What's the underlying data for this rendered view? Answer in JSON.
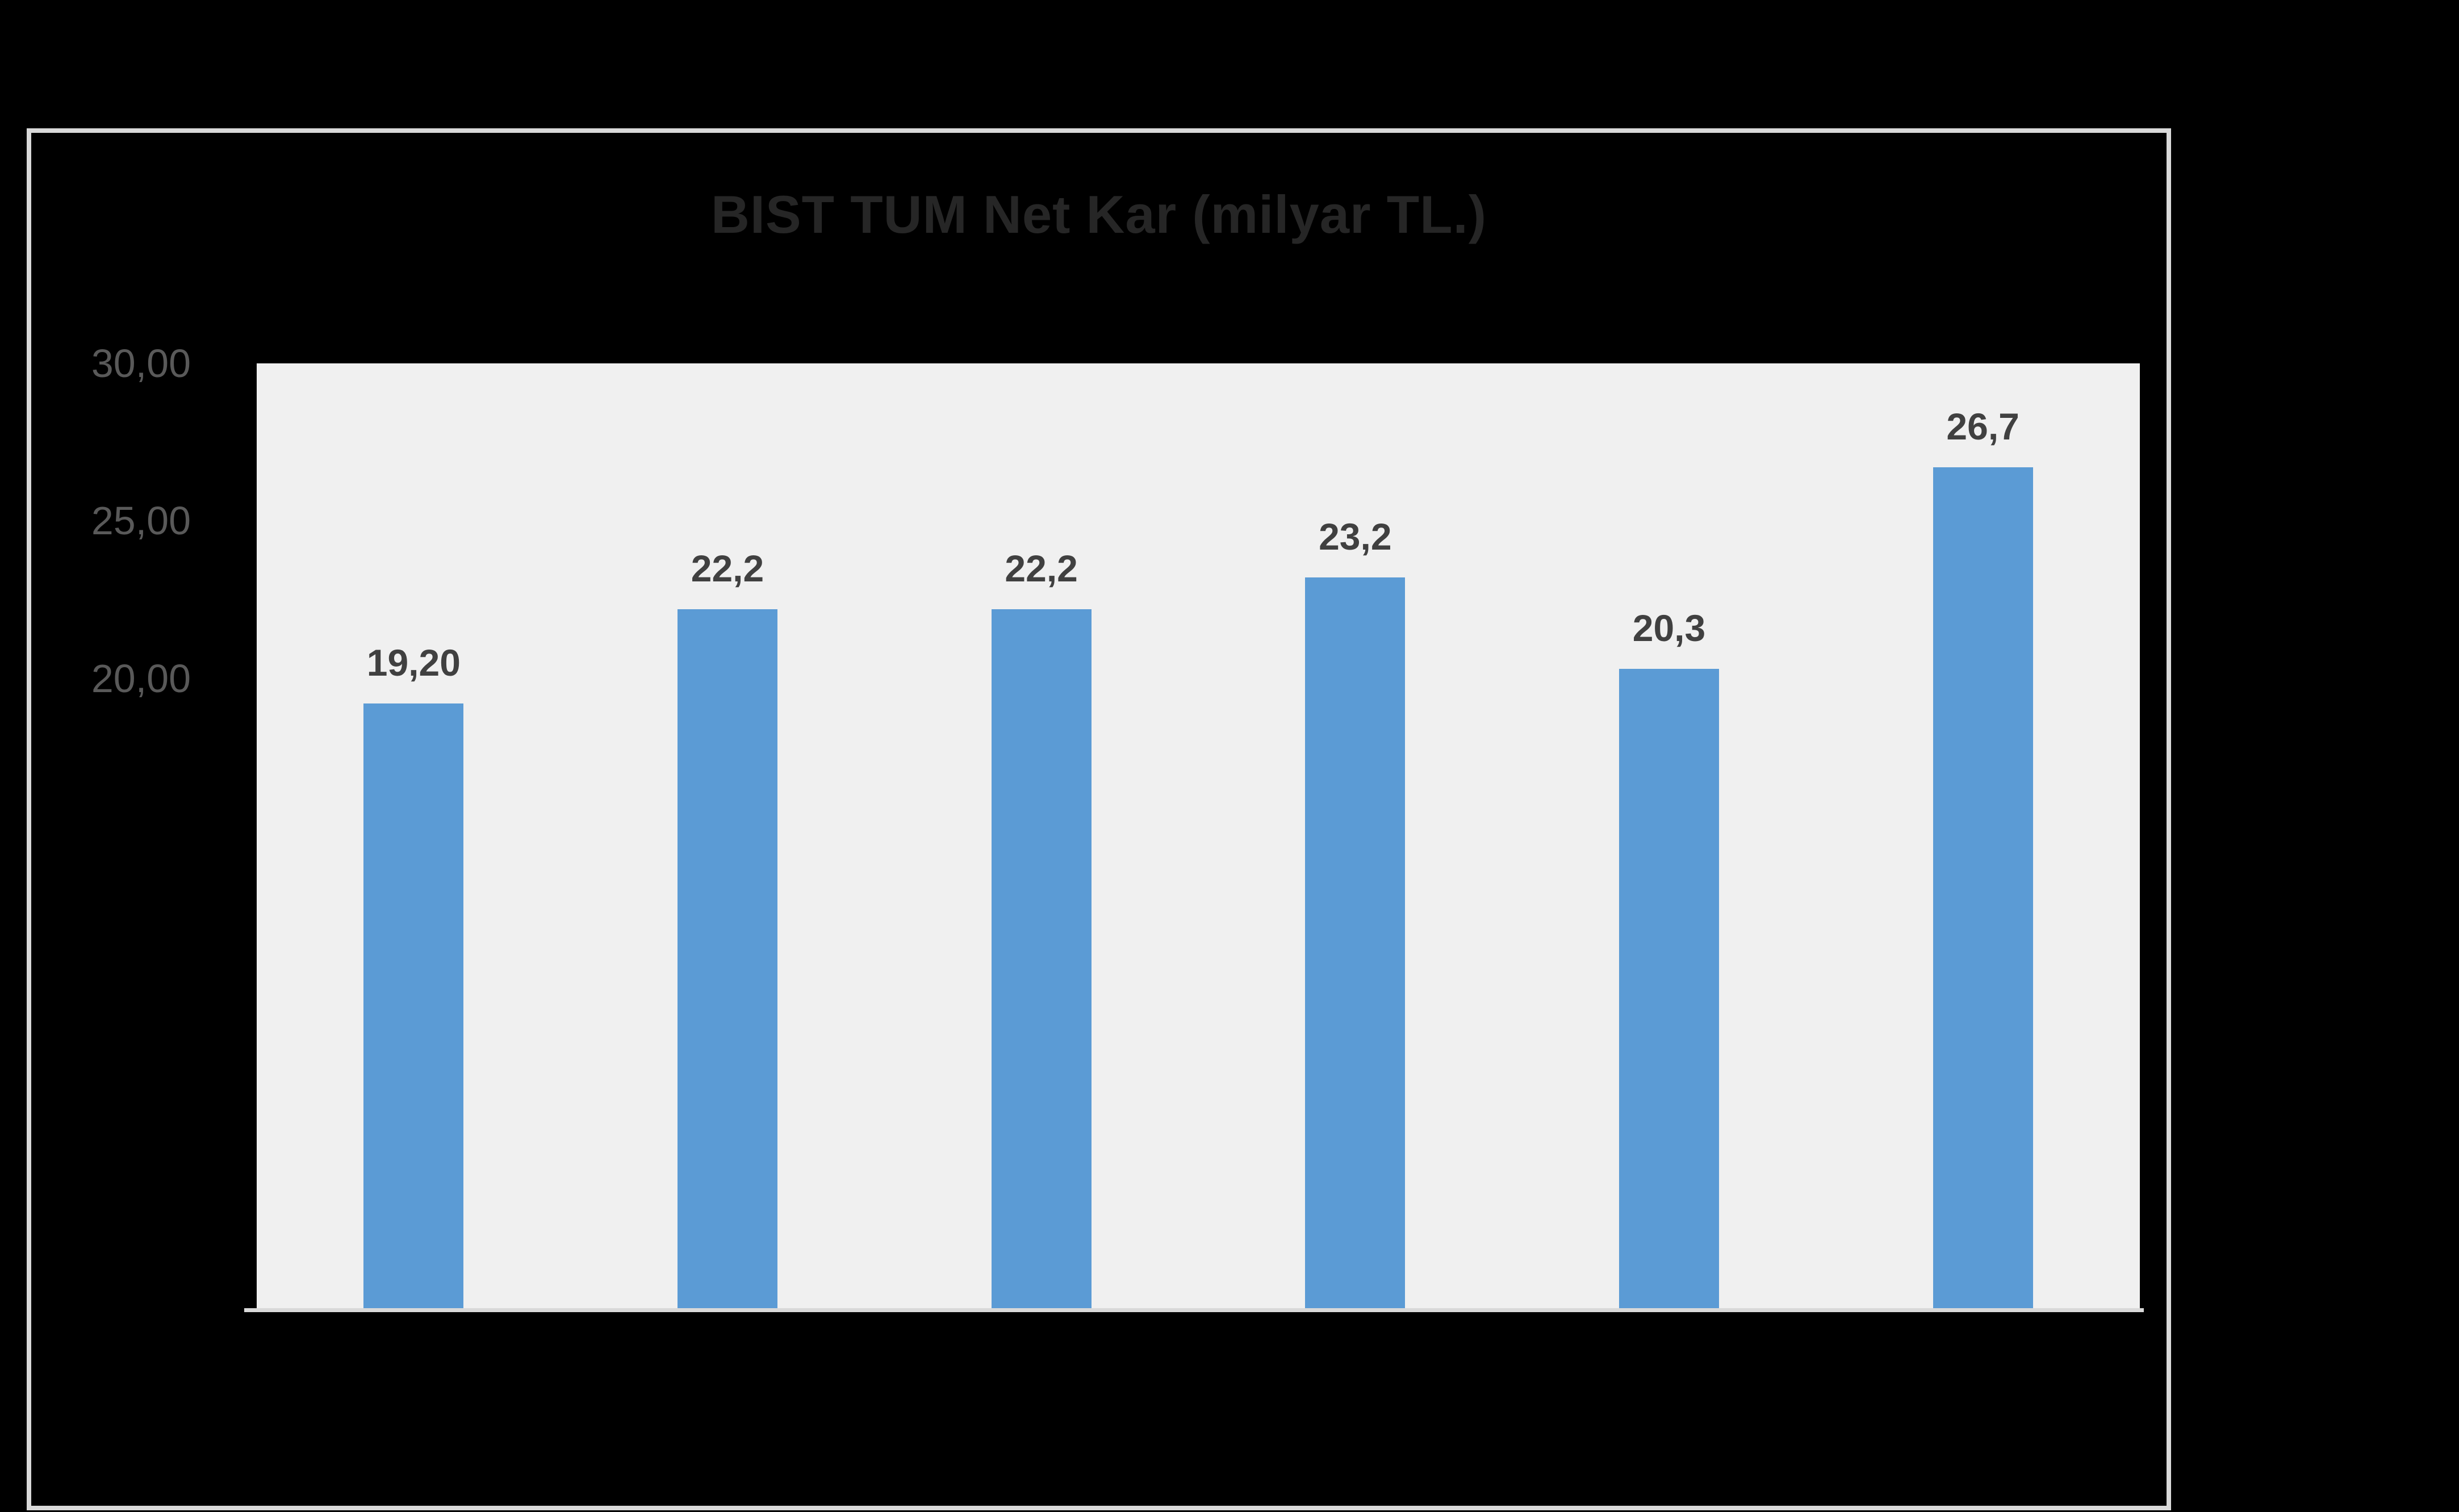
{
  "page": {
    "background_color": "#000000"
  },
  "chart": {
    "colors": {
      "chart_border": "#D9D9D9",
      "title_text": "#262626",
      "plot_background": "#F0F0F0",
      "x_axis_line": "#D9D9D9",
      "axis_tick_text": "#595959",
      "bar_fill": "#5B9BD5",
      "data_label_text": "#404040"
    }
  },
  "chart_data": {
    "type": "bar",
    "title": "BIST TUM Net Kar (milyar TL.)",
    "values": [
      19.2,
      22.2,
      22.2,
      23.2,
      20.3,
      26.7
    ],
    "data_labels": [
      "19,20",
      "22,2",
      "22,2",
      "23,2",
      "20,3",
      "26,7"
    ],
    "xlabel": "",
    "ylabel": "",
    "ylim": [
      0,
      30
    ],
    "ytick_interval": 5,
    "visible_ytick_labels": [
      {
        "value": 30,
        "label": "30,00"
      },
      {
        "value": 25,
        "label": "25,00"
      },
      {
        "value": 20,
        "label": "20,00"
      }
    ],
    "decimal_separator": ",",
    "grid": false,
    "legend": false,
    "x_axis_labels_visible": false
  }
}
